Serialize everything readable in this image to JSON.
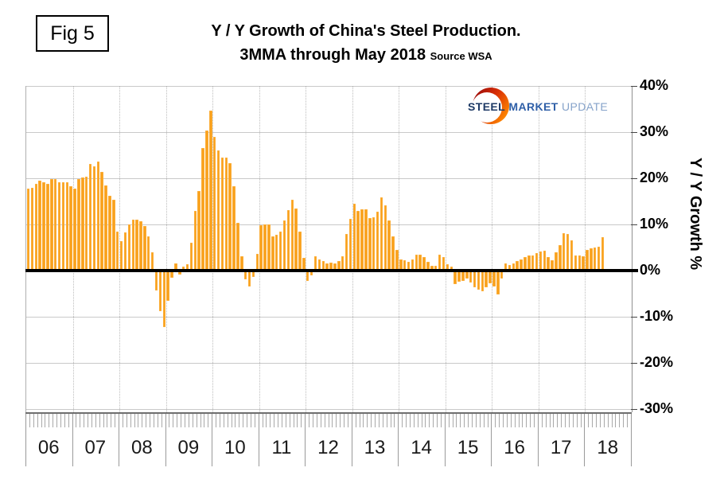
{
  "header": {
    "fig_label": "Fig 5"
  },
  "logo": {
    "steel": "STEEL",
    "market": "MARKET",
    "update": "UPDATE"
  },
  "chart_data": {
    "type": "bar",
    "title": "Y / Y Growth of China's Steel Production.",
    "subtitle": "3MMA through May 2018",
    "source": "Source WSA",
    "ylabel": "Y / Y Growth %",
    "ylim": [
      -31,
      40
    ],
    "grid": true,
    "legend_position": "none",
    "bar_color": "#F9A11D",
    "zero_line_color": "#000000",
    "ytick_labels": [
      "40%",
      "30%",
      "20%",
      "10%",
      "0%",
      "-10%",
      "-20%",
      "-30%"
    ],
    "ytick_values": [
      40,
      30,
      20,
      10,
      0,
      -10,
      -20,
      -30
    ],
    "x_year_labels": [
      "06",
      "07",
      "08",
      "09",
      "10",
      "11",
      "12",
      "13",
      "14",
      "15",
      "16",
      "17",
      "18"
    ],
    "monthly_series": [
      {
        "year": "06",
        "values": [
          17.8,
          18.0,
          18.8,
          19.5,
          19.1,
          18.8,
          19.8,
          19.9,
          19.2,
          19.2,
          19.2,
          18.3
        ]
      },
      {
        "year": "07",
        "values": [
          17.7,
          19.9,
          20.2,
          20.4,
          23.1,
          22.6,
          23.6,
          21.4,
          18.4,
          16.2,
          15.4,
          8.5
        ]
      },
      {
        "year": "08",
        "values": [
          6.3,
          8.3,
          10.0,
          11.0,
          11.1,
          10.7,
          9.7,
          7.4,
          4.0,
          -4.3,
          -8.8,
          -12.2
        ]
      },
      {
        "year": "09",
        "values": [
          -6.6,
          -1.5,
          1.6,
          -0.9,
          0.8,
          1.4,
          6.1,
          13.0,
          17.2,
          26.6,
          30.4,
          34.6
        ]
      },
      {
        "year": "10",
        "values": [
          29.0,
          26.0,
          24.4,
          24.4,
          23.2,
          18.3,
          10.3,
          3.1,
          -1.9,
          -3.4,
          -1.3,
          3.6
        ]
      },
      {
        "year": "11",
        "values": [
          9.9,
          10.0,
          10.0,
          7.4,
          7.7,
          8.4,
          10.8,
          13.1,
          15.4,
          13.5,
          8.4,
          2.8
        ]
      },
      {
        "year": "12",
        "values": [
          -2.2,
          -1.0,
          3.1,
          2.5,
          2.1,
          1.5,
          1.8,
          1.6,
          2.1,
          3.1,
          8.0,
          11.2
        ]
      },
      {
        "year": "13",
        "values": [
          14.5,
          12.9,
          13.3,
          13.2,
          11.4,
          11.6,
          12.8,
          15.9,
          14.1,
          10.9,
          7.4,
          4.5
        ]
      },
      {
        "year": "14",
        "values": [
          2.5,
          2.2,
          1.9,
          2.5,
          3.5,
          3.4,
          2.9,
          1.9,
          1.0,
          1.0,
          3.5,
          3.0
        ]
      },
      {
        "year": "15",
        "values": [
          1.4,
          0.9,
          -3.0,
          -2.4,
          -2.2,
          -1.8,
          -2.6,
          -3.6,
          -4.2,
          -4.5,
          -3.6,
          -2.8
        ]
      },
      {
        "year": "16",
        "values": [
          -3.5,
          -5.2,
          -1.7,
          1.6,
          1.2,
          1.5,
          2.1,
          2.5,
          2.9,
          3.2,
          3.3,
          3.8
        ]
      },
      {
        "year": "17",
        "values": [
          4.2,
          4.3,
          3.0,
          2.3,
          3.9,
          5.5,
          8.1,
          7.9,
          6.6,
          3.2,
          3.3,
          3.1
        ]
      },
      {
        "year": "18",
        "values": [
          4.5,
          4.9,
          5.0,
          5.1,
          7.2
        ]
      }
    ]
  }
}
